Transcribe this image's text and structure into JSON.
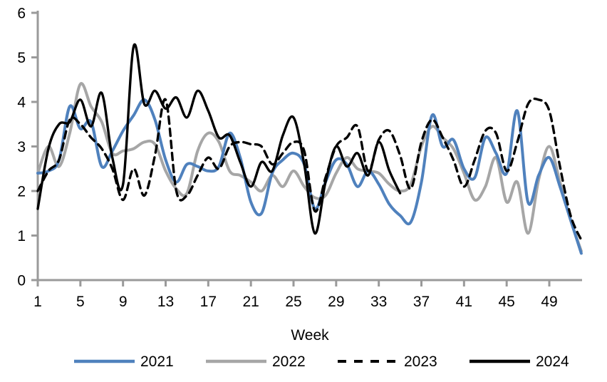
{
  "chart_data": {
    "type": "line",
    "xlabel": "Week",
    "ylabel": "",
    "x_min": 1,
    "x_max": 52,
    "ylim": [
      0,
      6
    ],
    "x_ticks": [
      1,
      5,
      9,
      13,
      17,
      21,
      25,
      29,
      33,
      37,
      41,
      45,
      49
    ],
    "y_ticks": [
      0,
      1,
      2,
      3,
      4,
      5,
      6
    ],
    "grid": false,
    "legend_position": "bottom",
    "axis_color": "#9a9a9a",
    "text_color": "#000000",
    "series": [
      {
        "name": "2021",
        "color": "#4f81bd",
        "dashed": false,
        "start_week": 1,
        "values": [
          2.4,
          2.45,
          2.7,
          3.9,
          3.4,
          3.55,
          2.55,
          2.9,
          3.35,
          3.7,
          4.05,
          3.6,
          2.7,
          2.2,
          2.6,
          2.55,
          2.45,
          2.55,
          3.3,
          2.75,
          1.75,
          1.5,
          2.4,
          2.7,
          2.85,
          2.6,
          1.6,
          2.2,
          2.7,
          2.6,
          2.1,
          2.45,
          2.15,
          1.7,
          1.45,
          1.3,
          2.2,
          3.7,
          3.0,
          3.15,
          2.5,
          2.3,
          3.2,
          2.85,
          2.4,
          3.8,
          1.75,
          2.35,
          2.75,
          2.1,
          1.35,
          0.6
        ]
      },
      {
        "name": "2022",
        "color": "#a6a6a6",
        "dashed": false,
        "start_week": 1,
        "values": [
          2.4,
          3.0,
          2.55,
          3.3,
          4.4,
          3.9,
          3.55,
          2.85,
          2.9,
          2.95,
          3.1,
          3.05,
          2.45,
          2.05,
          1.95,
          2.9,
          3.3,
          3.1,
          2.45,
          2.35,
          2.2,
          2.0,
          2.35,
          2.1,
          2.45,
          2.1,
          1.85,
          1.9,
          2.4,
          2.75,
          2.5,
          2.45,
          2.4,
          2.15,
          2.0,
          2.15,
          3.0,
          3.45,
          3.2,
          2.95,
          2.4,
          1.8,
          2.1,
          2.75,
          1.75,
          2.2,
          1.05,
          2.25,
          3.0,
          2.2,
          1.35,
          0.65
        ]
      },
      {
        "name": "2023",
        "color": "#000000",
        "dashed": true,
        "start_week": 1,
        "values": [
          2.0,
          2.45,
          2.7,
          3.6,
          3.5,
          3.2,
          2.95,
          2.5,
          1.8,
          2.5,
          1.9,
          2.8,
          4.05,
          2.0,
          1.9,
          2.35,
          2.75,
          2.5,
          3.0,
          3.1,
          3.05,
          3.0,
          2.6,
          2.85,
          3.1,
          2.9,
          1.55,
          2.3,
          3.0,
          3.2,
          3.45,
          2.45,
          3.15,
          3.35,
          2.8,
          2.05,
          3.1,
          3.6,
          3.2,
          2.7,
          2.1,
          2.7,
          3.35,
          3.3,
          2.45,
          3.1,
          3.95,
          4.05,
          3.8,
          2.55,
          1.45,
          0.9
        ]
      },
      {
        "name": "2024",
        "color": "#000000",
        "dashed": false,
        "start_week": 1,
        "values": [
          1.6,
          2.95,
          3.5,
          3.55,
          4.05,
          3.45,
          4.2,
          2.75,
          2.15,
          5.25,
          3.95,
          4.25,
          3.85,
          4.1,
          3.65,
          4.25,
          3.8,
          3.2,
          3.25,
          2.65,
          2.1,
          2.65,
          2.45,
          3.25,
          3.65,
          2.6,
          1.05,
          2.2,
          3.0,
          2.55,
          2.85,
          2.35,
          3.1,
          2.45,
          1.95
        ]
      }
    ]
  }
}
